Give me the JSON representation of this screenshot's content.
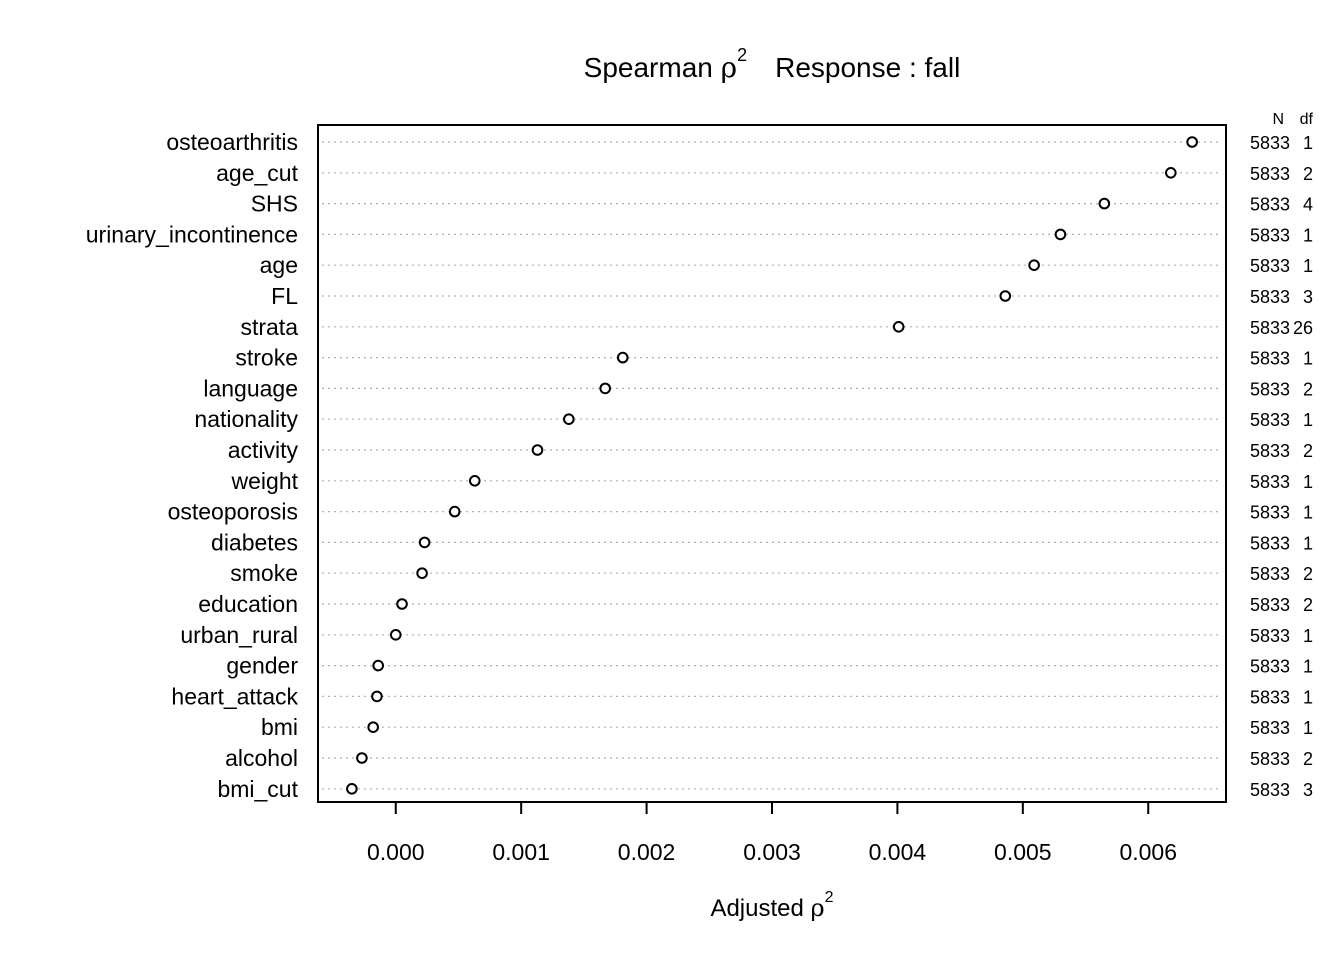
{
  "chart_data": {
    "type": "scatter",
    "title": {
      "part1": "Spearman ",
      "rho": "ρ",
      "sup": "2",
      "part2": "Response : fall"
    },
    "xlabel": {
      "text": "Adjusted ",
      "rho": "ρ",
      "sup": "2"
    },
    "ylabel": "",
    "xlim": [
      -0.00062,
      0.00662
    ],
    "xticks": [
      "0.000",
      "0.001",
      "0.002",
      "0.003",
      "0.004",
      "0.005",
      "0.006"
    ],
    "xtick_values": [
      0,
      0.001,
      0.002,
      0.003,
      0.004,
      0.005,
      0.006
    ],
    "column_headers": {
      "n": "N",
      "df": "df"
    },
    "grid": "dotted horizontal",
    "marker": "open-circle",
    "points": [
      {
        "label": "osteoarthritis",
        "value": 0.00635,
        "n": "5833",
        "df": "1"
      },
      {
        "label": "age_cut",
        "value": 0.00618,
        "n": "5833",
        "df": "2"
      },
      {
        "label": "SHS",
        "value": 0.00565,
        "n": "5833",
        "df": "4"
      },
      {
        "label": "urinary_incontinence",
        "value": 0.0053,
        "n": "5833",
        "df": "1"
      },
      {
        "label": "age",
        "value": 0.00509,
        "n": "5833",
        "df": "1"
      },
      {
        "label": "FL",
        "value": 0.00486,
        "n": "5833",
        "df": "3"
      },
      {
        "label": "strata",
        "value": 0.00401,
        "n": "5833",
        "df": "26"
      },
      {
        "label": "stroke",
        "value": 0.00181,
        "n": "5833",
        "df": "1"
      },
      {
        "label": "language",
        "value": 0.00167,
        "n": "5833",
        "df": "2"
      },
      {
        "label": "nationality",
        "value": 0.00138,
        "n": "5833",
        "df": "1"
      },
      {
        "label": "activity",
        "value": 0.00113,
        "n": "5833",
        "df": "2"
      },
      {
        "label": "weight",
        "value": 0.00063,
        "n": "5833",
        "df": "1"
      },
      {
        "label": "osteoporosis",
        "value": 0.00047,
        "n": "5833",
        "df": "1"
      },
      {
        "label": "diabetes",
        "value": 0.00023,
        "n": "5833",
        "df": "1"
      },
      {
        "label": "smoke",
        "value": 0.00021,
        "n": "5833",
        "df": "2"
      },
      {
        "label": "education",
        "value": 5e-05,
        "n": "5833",
        "df": "2"
      },
      {
        "label": "urban_rural",
        "value": 0.0,
        "n": "5833",
        "df": "1"
      },
      {
        "label": "gender",
        "value": -0.00014,
        "n": "5833",
        "df": "1"
      },
      {
        "label": "heart_attack",
        "value": -0.00015,
        "n": "5833",
        "df": "1"
      },
      {
        "label": "bmi",
        "value": -0.00018,
        "n": "5833",
        "df": "1"
      },
      {
        "label": "alcohol",
        "value": -0.00027,
        "n": "5833",
        "df": "2"
      },
      {
        "label": "bmi_cut",
        "value": -0.00035,
        "n": "5833",
        "df": "3"
      }
    ]
  }
}
